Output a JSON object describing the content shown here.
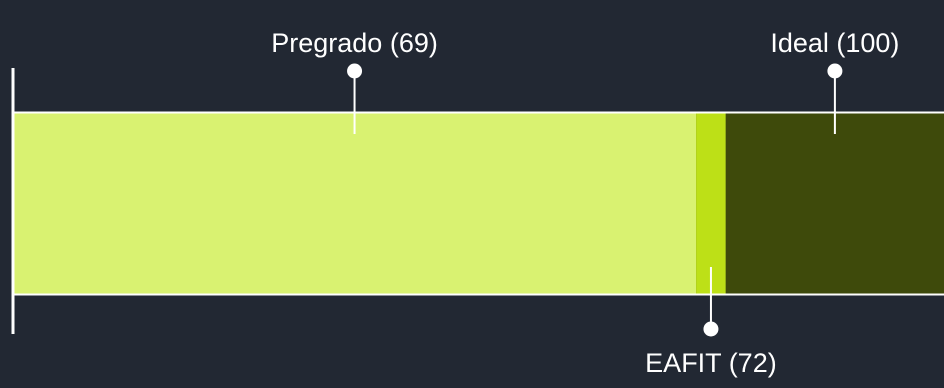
{
  "chart_data": {
    "type": "bar",
    "orientation": "horizontal",
    "stacked": true,
    "xlim": [
      0,
      100
    ],
    "categories": [
      "Pregrado",
      "EAFIT",
      "Ideal"
    ],
    "values": [
      69,
      72,
      100
    ],
    "labels": [
      "Pregrado (69)",
      "EAFIT (72)",
      "Ideal (100)"
    ],
    "label_positions": [
      "top",
      "bottom",
      "top"
    ],
    "colors": [
      "#d9f271",
      "#bde017",
      "#3e4a0b"
    ],
    "grid": false,
    "legend": "none"
  },
  "colors": {
    "background": "#222833",
    "lines": "#ffffff",
    "text": "#ffffff"
  }
}
